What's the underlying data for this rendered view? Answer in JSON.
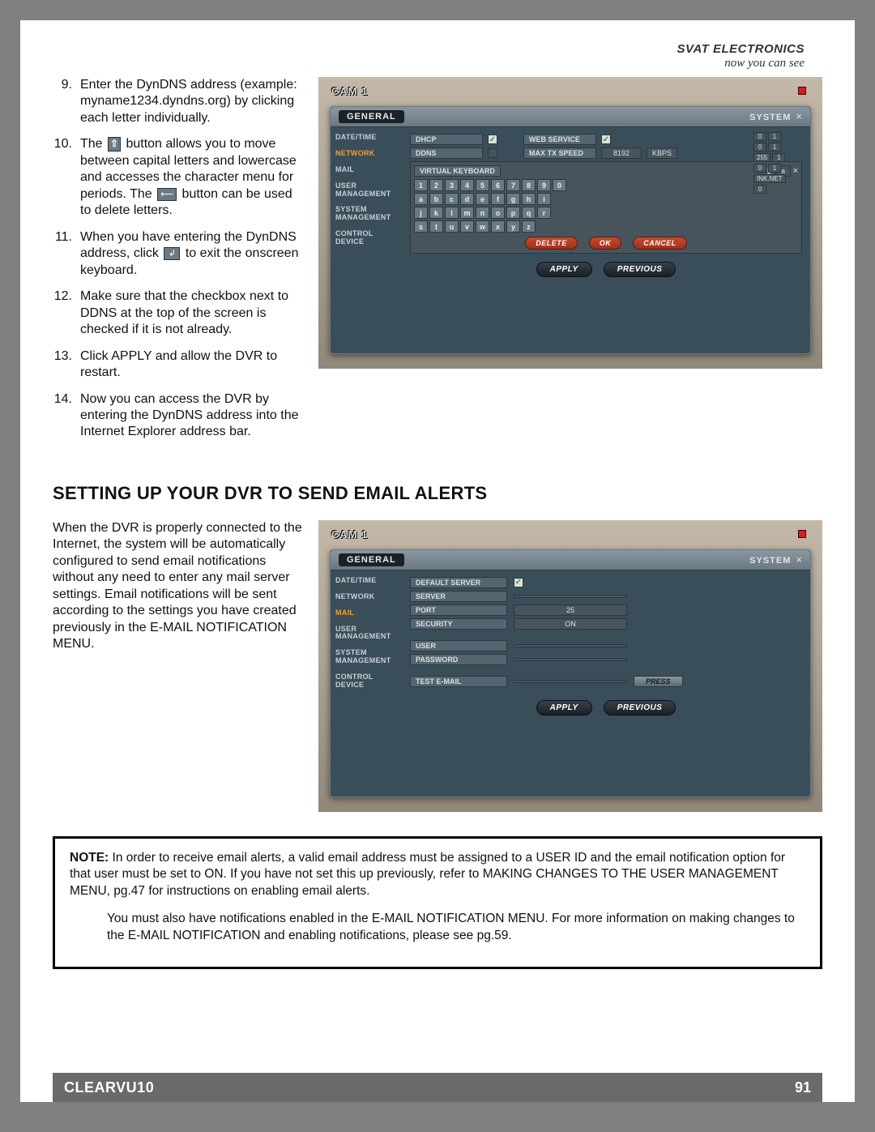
{
  "brand": {
    "line1": "SVAT ELECTRONICS",
    "line2": "now you can see"
  },
  "footer": {
    "model": "CLEARVU10",
    "page": "91"
  },
  "section1": {
    "steps": [
      {
        "n": "9.",
        "t": "Enter the DynDNS address (example: myname1234.dyndns.org) by clicking each letter individually."
      },
      {
        "n": "10.",
        "before": "The ",
        "mid1": " button allows you to move between capital letters and lowercase and accesses the character menu for periods.  The ",
        "after": " button can be used to delete letters."
      },
      {
        "n": "11.",
        "before": "When you have entering the DynDNS address, click ",
        "after": " to exit the onscreen keyboard."
      },
      {
        "n": "12.",
        "t": "Make sure that the checkbox next to DDNS at the top of the screen is checked if it is not already."
      },
      {
        "n": "13.",
        "t": "Click APPLY and allow the DVR to restart."
      },
      {
        "n": "14.",
        "t": "Now you can access the DVR by entering the DynDNS address into the Internet Explorer address bar."
      }
    ],
    "screenshot": {
      "cam": "CAM 1",
      "general": "GENERAL",
      "system": "SYSTEM",
      "nav": [
        "DATE/TIME",
        "NETWORK",
        "MAIL",
        "USER\nMANAGEMENT",
        "SYSTEM\nMANAGEMENT",
        "CONTROL\nDEVICE"
      ],
      "nav_active": 1,
      "top_labels": [
        "DHCP",
        "DDNS",
        "WEB SERVICE",
        "MAX TX SPEED"
      ],
      "top_vals": {
        "speed": "8192",
        "unit": "KBPS"
      },
      "vkb_title": "VIRTUAL KEYBOARD",
      "vkb_cur": "a",
      "keys": [
        [
          "1",
          "2",
          "3",
          "4",
          "5",
          "6",
          "7",
          "8",
          "9",
          "0",
          ""
        ],
        [
          "a",
          "b",
          "c",
          "d",
          "e",
          "f",
          "g",
          "h",
          "i",
          "",
          ""
        ],
        [
          "j",
          "k",
          "l",
          "m",
          "n",
          "o",
          "p",
          "q",
          "r",
          "",
          ""
        ],
        [
          "s",
          "t",
          "u",
          "v",
          "w",
          "x",
          "y",
          "z",
          "",
          "",
          ""
        ]
      ],
      "vbtns": [
        "DELETE",
        "OK",
        "CANCEL"
      ],
      "btns": [
        "APPLY",
        "PREVIOUS"
      ],
      "side": [
        [
          "0",
          "1"
        ],
        [
          "0",
          "1"
        ],
        [
          "255",
          "1"
        ],
        [
          "0",
          "1"
        ],
        [
          "INK.NET",
          ""
        ],
        [
          "0",
          ""
        ]
      ]
    }
  },
  "section2": {
    "title": "SETTING UP YOUR DVR TO SEND EMAIL ALERTS",
    "desc": "When the DVR is properly connected to the Internet, the system will be automatically configured to send email notifications without any need to enter any mail server settings.  Email notifications will be sent according to the settings you have created previously in the E-MAIL NOTIFICATION MENU.",
    "screenshot": {
      "cam": "CAM 1",
      "general": "GENERAL",
      "system": "SYSTEM",
      "nav": [
        "DATE/TIME",
        "NETWORK",
        "MAIL",
        "USER\nMANAGEMENT",
        "SYSTEM\nMANAGEMENT",
        "CONTROL\nDEVICE"
      ],
      "nav_active": 2,
      "rows": [
        {
          "label": "DEFAULT SERVER",
          "value": "",
          "check": true
        },
        {
          "label": "SERVER",
          "value": ""
        },
        {
          "label": "PORT",
          "value": "25"
        },
        {
          "label": "SECURITY",
          "value": "ON"
        },
        {
          "label": "USER",
          "value": ""
        },
        {
          "label": "PASSWORD",
          "value": ""
        },
        {
          "label": "TEST E-MAIL",
          "value": "",
          "press": "PRESS"
        }
      ],
      "btns": [
        "APPLY",
        "PREVIOUS"
      ]
    }
  },
  "note": {
    "label": "NOTE:",
    "p1": " In order to receive email alerts, a valid email address must be assigned to a USER ID and the email notification option for that user must be set to ON.   If you have not set this up previously, refer to MAKING CHANGES TO THE USER MANAGEMENT MENU, pg.47 for instructions on enabling email alerts.",
    "p2": "You must also have notifications enabled in the E-MAIL NOTIFICATION MENU.  For more information on making changes to the E-MAIL NOTIFICATION and enabling notifications, please see pg.59."
  }
}
